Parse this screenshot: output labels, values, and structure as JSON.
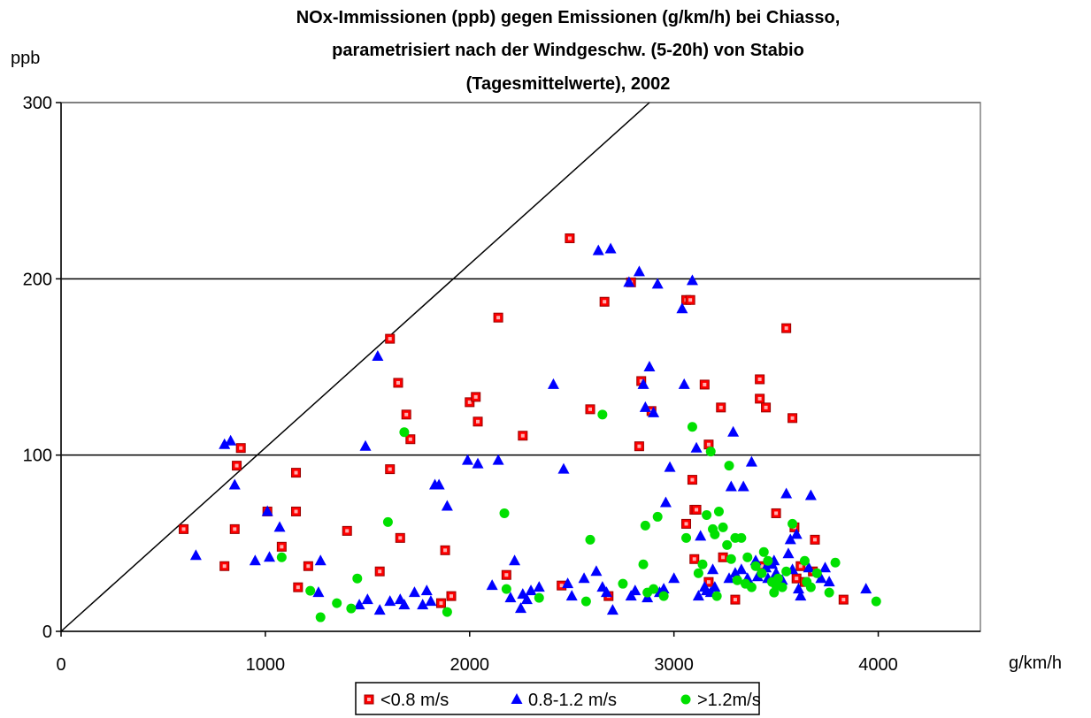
{
  "chart_data": {
    "type": "scatter",
    "title_lines": [
      "NOx-Immissionen (ppb) gegen Emissionen (g/km/h) bei Chiasso,",
      "parametrisiert nach der Windgeschw.  (5-20h) von Stabio",
      "(Tagesmittelwerte), 2002"
    ],
    "ylabel": "ppb",
    "xlabel": "g/km/h",
    "xlim": [
      0,
      4500
    ],
    "ylim": [
      0,
      300
    ],
    "x_ticks": [
      "0",
      "1000",
      "2000",
      "3000",
      "4000"
    ],
    "y_ticks": [
      "0",
      "100",
      "200",
      "300"
    ],
    "gridlines_y": [
      100,
      200,
      300
    ],
    "reference_line": {
      "from": [
        0,
        0
      ],
      "to": [
        2880,
        300
      ]
    },
    "legend_position": "bottom",
    "series": [
      {
        "name": "<0.8 m/s",
        "marker": "square",
        "color": "#ff0000",
        "points": [
          [
            600,
            58
          ],
          [
            800,
            37
          ],
          [
            850,
            58
          ],
          [
            860,
            94
          ],
          [
            880,
            104
          ],
          [
            1010,
            68
          ],
          [
            1080,
            48
          ],
          [
            1150,
            68
          ],
          [
            1150,
            90
          ],
          [
            1160,
            25
          ],
          [
            1210,
            37
          ],
          [
            1400,
            57
          ],
          [
            1560,
            34
          ],
          [
            1610,
            92
          ],
          [
            1610,
            166
          ],
          [
            1650,
            141
          ],
          [
            1660,
            53
          ],
          [
            1690,
            123
          ],
          [
            1710,
            109
          ],
          [
            1860,
            16
          ],
          [
            1880,
            46
          ],
          [
            1910,
            20
          ],
          [
            2000,
            130
          ],
          [
            2030,
            133
          ],
          [
            2040,
            119
          ],
          [
            2140,
            178
          ],
          [
            2180,
            32
          ],
          [
            2260,
            111
          ],
          [
            2450,
            26
          ],
          [
            2490,
            223
          ],
          [
            2590,
            126
          ],
          [
            2660,
            187
          ],
          [
            2680,
            20
          ],
          [
            2790,
            198
          ],
          [
            2830,
            105
          ],
          [
            2840,
            142
          ],
          [
            2890,
            125
          ],
          [
            3060,
            61
          ],
          [
            3060,
            188
          ],
          [
            3080,
            188
          ],
          [
            3090,
            86
          ],
          [
            3100,
            69
          ],
          [
            3100,
            41
          ],
          [
            3110,
            69
          ],
          [
            3150,
            140
          ],
          [
            3170,
            28
          ],
          [
            3170,
            106
          ],
          [
            3230,
            127
          ],
          [
            3240,
            42
          ],
          [
            3300,
            18
          ],
          [
            3420,
            143
          ],
          [
            3420,
            132
          ],
          [
            3430,
            37
          ],
          [
            3450,
            127
          ],
          [
            3500,
            67
          ],
          [
            3550,
            172
          ],
          [
            3580,
            121
          ],
          [
            3590,
            59
          ],
          [
            3600,
            30
          ],
          [
            3620,
            37
          ],
          [
            3640,
            28
          ],
          [
            3680,
            34
          ],
          [
            3690,
            52
          ],
          [
            3830,
            18
          ]
        ]
      },
      {
        "name": "0.8-1.2 m/s",
        "marker": "triangle",
        "color": "#0000ff",
        "points": [
          [
            660,
            43
          ],
          [
            800,
            106
          ],
          [
            830,
            108
          ],
          [
            850,
            83
          ],
          [
            950,
            40
          ],
          [
            1010,
            68
          ],
          [
            1020,
            42
          ],
          [
            1070,
            59
          ],
          [
            1260,
            22
          ],
          [
            1270,
            40
          ],
          [
            1460,
            15
          ],
          [
            1490,
            105
          ],
          [
            1500,
            18
          ],
          [
            1550,
            156
          ],
          [
            1560,
            12
          ],
          [
            1610,
            17
          ],
          [
            1660,
            18
          ],
          [
            1680,
            15
          ],
          [
            1730,
            22
          ],
          [
            1770,
            15
          ],
          [
            1790,
            23
          ],
          [
            1810,
            17
          ],
          [
            1830,
            83
          ],
          [
            1850,
            83
          ],
          [
            1890,
            71
          ],
          [
            1990,
            97
          ],
          [
            2040,
            95
          ],
          [
            2110,
            26
          ],
          [
            2140,
            97
          ],
          [
            2200,
            19
          ],
          [
            2220,
            40
          ],
          [
            2250,
            13
          ],
          [
            2260,
            21
          ],
          [
            2280,
            18
          ],
          [
            2300,
            23
          ],
          [
            2340,
            25
          ],
          [
            2410,
            140
          ],
          [
            2460,
            92
          ],
          [
            2480,
            27
          ],
          [
            2500,
            20
          ],
          [
            2560,
            30
          ],
          [
            2620,
            34
          ],
          [
            2630,
            216
          ],
          [
            2650,
            25
          ],
          [
            2670,
            22
          ],
          [
            2690,
            217
          ],
          [
            2700,
            12
          ],
          [
            2780,
            198
          ],
          [
            2790,
            20
          ],
          [
            2810,
            23
          ],
          [
            2830,
            204
          ],
          [
            2850,
            140
          ],
          [
            2860,
            127
          ],
          [
            2870,
            19
          ],
          [
            2880,
            150
          ],
          [
            2900,
            124
          ],
          [
            2920,
            197
          ],
          [
            2930,
            22
          ],
          [
            2950,
            24
          ],
          [
            2960,
            73
          ],
          [
            2980,
            93
          ],
          [
            3000,
            30
          ],
          [
            3040,
            183
          ],
          [
            3050,
            140
          ],
          [
            3090,
            199
          ],
          [
            3110,
            104
          ],
          [
            3120,
            20
          ],
          [
            3130,
            54
          ],
          [
            3150,
            25
          ],
          [
            3160,
            23
          ],
          [
            3180,
            22
          ],
          [
            3190,
            35
          ],
          [
            3200,
            25
          ],
          [
            3270,
            30
          ],
          [
            3280,
            82
          ],
          [
            3290,
            113
          ],
          [
            3300,
            33
          ],
          [
            3330,
            35
          ],
          [
            3340,
            82
          ],
          [
            3360,
            30
          ],
          [
            3380,
            96
          ],
          [
            3400,
            40
          ],
          [
            3410,
            31
          ],
          [
            3450,
            36
          ],
          [
            3460,
            30
          ],
          [
            3480,
            38
          ],
          [
            3490,
            40
          ],
          [
            3500,
            33
          ],
          [
            3510,
            28
          ],
          [
            3530,
            29
          ],
          [
            3550,
            78
          ],
          [
            3560,
            44
          ],
          [
            3570,
            52
          ],
          [
            3580,
            35
          ],
          [
            3600,
            55
          ],
          [
            3610,
            24
          ],
          [
            3620,
            20
          ],
          [
            3660,
            36
          ],
          [
            3670,
            77
          ],
          [
            3720,
            30
          ],
          [
            3740,
            36
          ],
          [
            3760,
            28
          ],
          [
            3940,
            24
          ]
        ]
      },
      {
        "name": ">1.2m/s",
        "marker": "circle",
        "color": "#00e000",
        "points": [
          [
            1080,
            42
          ],
          [
            1220,
            23
          ],
          [
            1270,
            8
          ],
          [
            1350,
            16
          ],
          [
            1420,
            13
          ],
          [
            1450,
            30
          ],
          [
            1600,
            62
          ],
          [
            1680,
            113
          ],
          [
            1890,
            11
          ],
          [
            2170,
            67
          ],
          [
            2180,
            24
          ],
          [
            2340,
            19
          ],
          [
            2570,
            17
          ],
          [
            2590,
            52
          ],
          [
            2650,
            123
          ],
          [
            2750,
            27
          ],
          [
            2850,
            38
          ],
          [
            2860,
            60
          ],
          [
            2870,
            22
          ],
          [
            2900,
            24
          ],
          [
            2920,
            65
          ],
          [
            2950,
            20
          ],
          [
            3060,
            53
          ],
          [
            3090,
            116
          ],
          [
            3120,
            33
          ],
          [
            3140,
            38
          ],
          [
            3160,
            66
          ],
          [
            3180,
            102
          ],
          [
            3190,
            58
          ],
          [
            3200,
            55
          ],
          [
            3210,
            20
          ],
          [
            3220,
            68
          ],
          [
            3240,
            59
          ],
          [
            3260,
            49
          ],
          [
            3270,
            94
          ],
          [
            3280,
            41
          ],
          [
            3300,
            53
          ],
          [
            3310,
            29
          ],
          [
            3330,
            53
          ],
          [
            3350,
            27
          ],
          [
            3360,
            42
          ],
          [
            3380,
            25
          ],
          [
            3400,
            37
          ],
          [
            3430,
            33
          ],
          [
            3440,
            45
          ],
          [
            3460,
            40
          ],
          [
            3480,
            28
          ],
          [
            3490,
            22
          ],
          [
            3500,
            26
          ],
          [
            3510,
            30
          ],
          [
            3530,
            25
          ],
          [
            3550,
            34
          ],
          [
            3580,
            61
          ],
          [
            3640,
            40
          ],
          [
            3650,
            28
          ],
          [
            3670,
            25
          ],
          [
            3700,
            33
          ],
          [
            3760,
            22
          ],
          [
            3790,
            39
          ],
          [
            3990,
            17
          ]
        ]
      }
    ]
  }
}
